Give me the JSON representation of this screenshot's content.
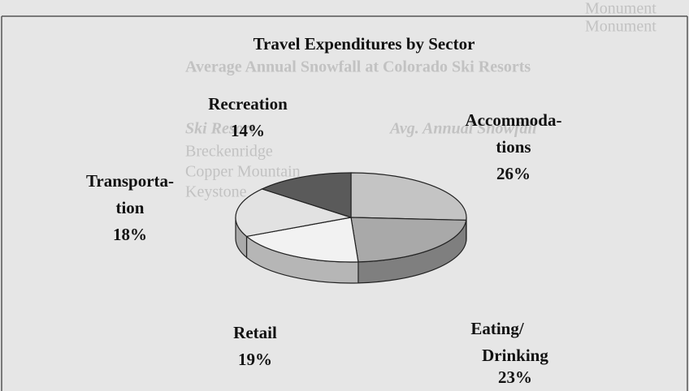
{
  "chart_data": {
    "type": "pie3d",
    "title": "Travel Expenditures by Sector",
    "categories": [
      "Accommoda-\ntions",
      "Eating/\nDrinking",
      "Retail",
      "Transporta-\ntion",
      "Recreation"
    ],
    "values": [
      26,
      23,
      19,
      18,
      14
    ],
    "value_labels": [
      "26%",
      "23%",
      "19%",
      "18%",
      "14%"
    ],
    "colors": [
      "#c4c4c4",
      "#a9a9a9",
      "#f2f2f2",
      "#e2e2e2",
      "#5a5a5a"
    ]
  },
  "background_text": [
    "Monument",
    "Monument",
    "Average Annual Snowfall at Colorado Ski Resorts",
    "Ski Resort",
    "Avg. Annual Snowfall",
    "Breckenridge",
    "Copper Mountain",
    "Keystone"
  ]
}
